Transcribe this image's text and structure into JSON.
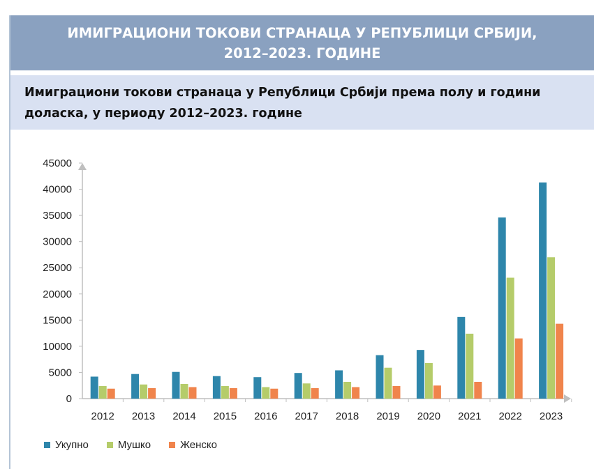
{
  "header": {
    "title_line1": "ИМИГРАЦИОНИ ТОКОВИ СТРАНАЦА У РЕПУБЛИЦИ СРБИЈИ,",
    "title_line2": "2012–2023. ГОДИНЕ"
  },
  "subheader": {
    "line1": "Имиграциони токови странаца у Републици Србији према полу и години",
    "line2": "доласка, у периоду 2012–2023. године"
  },
  "chart_data": {
    "type": "bar",
    "title": "",
    "xlabel": "",
    "ylabel": "",
    "categories": [
      "2012",
      "2013",
      "2014",
      "2015",
      "2016",
      "2017",
      "2018",
      "2019",
      "2020",
      "2021",
      "2022",
      "2023"
    ],
    "series": [
      {
        "name": "Укупно",
        "color": "#2e86ab",
        "values": [
          4200,
          4700,
          5100,
          4300,
          4100,
          4900,
          5400,
          8300,
          9300,
          15600,
          34600,
          41300
        ]
      },
      {
        "name": "Мушко",
        "color": "#b5cc6a",
        "values": [
          2400,
          2700,
          2800,
          2400,
          2200,
          2900,
          3200,
          5900,
          6800,
          12400,
          23100,
          27000
        ]
      },
      {
        "name": "Женско",
        "color": "#f0844c",
        "values": [
          1900,
          2000,
          2200,
          2000,
          1900,
          2000,
          2200,
          2400,
          2500,
          3200,
          11500,
          14300
        ]
      }
    ],
    "ylim": [
      0,
      45000
    ],
    "yticks": [
      "0",
      "5000",
      "10000",
      "15000",
      "20000",
      "25000",
      "30000",
      "35000",
      "40000",
      "45000"
    ],
    "legend_position": "bottom-left",
    "grid": false
  }
}
